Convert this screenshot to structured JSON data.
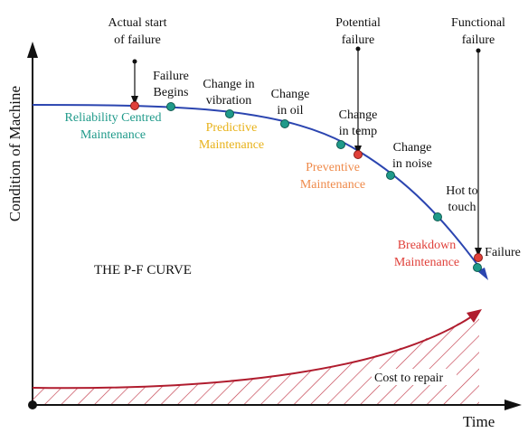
{
  "axes": {
    "y_label": "Condition of Machine",
    "x_label": "Time"
  },
  "title": "THE P-F CURVE",
  "events": {
    "actual_start": [
      "Actual start",
      "of failure"
    ],
    "potential_failure": [
      "Potential",
      "failure"
    ],
    "functional_failure": [
      "Functional",
      "failure"
    ]
  },
  "curve_labels": {
    "failure_begins": [
      "Failure",
      "Begins"
    ],
    "change_vibration": [
      "Change in",
      "vibration"
    ],
    "change_oil": [
      "Change",
      "in oil"
    ],
    "change_temp": [
      "Change",
      "in temp"
    ],
    "change_noise": [
      "Change",
      "in noise"
    ],
    "hot_touch": [
      "Hot to",
      "touch"
    ],
    "failure": "Failure"
  },
  "maintenance": {
    "reliability": [
      "Reliability Centred",
      "Maintenance"
    ],
    "predictive": [
      "Predictive",
      "Maintenance"
    ],
    "preventive": [
      "Preventive",
      "Maintenance"
    ],
    "breakdown": [
      "Breakdown",
      "Maintenance"
    ]
  },
  "cost": {
    "label": "Cost to repair"
  },
  "colors": {
    "curve": "#2b45b0",
    "teal": "#1f9a8a",
    "red_marker": "#e0403a",
    "predictive": "#e8b21a",
    "preventive": "#ef8a4a",
    "breakdown": "#e0403a",
    "cost_curve": "#b01c2e"
  }
}
